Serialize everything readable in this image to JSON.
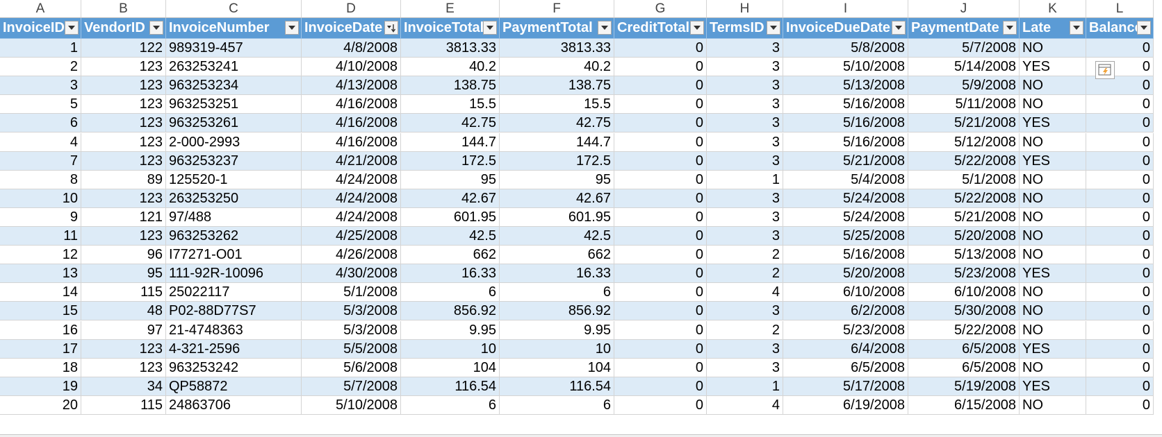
{
  "column_letters": [
    "A",
    "B",
    "C",
    "D",
    "E",
    "F",
    "G",
    "H",
    "I",
    "J",
    "K",
    "L"
  ],
  "headers": [
    "InvoiceID",
    "VendorID",
    "InvoiceNumber",
    "InvoiceDate",
    "InvoiceTotal",
    "PaymentTotal",
    "CreditTotal",
    "TermsID",
    "InvoiceDueDate",
    "PaymentDate",
    "Late",
    "Balance"
  ],
  "sorted_column": "InvoiceDate",
  "colors": {
    "header_bg": "#5b9bd5",
    "band_bg": "#ddebf7",
    "header_text": "#ffffff"
  },
  "rows": [
    [
      "1",
      "122",
      "989319-457",
      "4/8/2008",
      "3813.33",
      "3813.33",
      "0",
      "3",
      "5/8/2008",
      "5/7/2008",
      "NO",
      "0"
    ],
    [
      "2",
      "123",
      "263253241",
      "4/10/2008",
      "40.2",
      "40.2",
      "0",
      "3",
      "5/10/2008",
      "5/14/2008",
      "YES",
      "0"
    ],
    [
      "3",
      "123",
      "963253234",
      "4/13/2008",
      "138.75",
      "138.75",
      "0",
      "3",
      "5/13/2008",
      "5/9/2008",
      "NO",
      "0"
    ],
    [
      "5",
      "123",
      "963253251",
      "4/16/2008",
      "15.5",
      "15.5",
      "0",
      "3",
      "5/16/2008",
      "5/11/2008",
      "NO",
      "0"
    ],
    [
      "6",
      "123",
      "963253261",
      "4/16/2008",
      "42.75",
      "42.75",
      "0",
      "3",
      "5/16/2008",
      "5/21/2008",
      "YES",
      "0"
    ],
    [
      "4",
      "123",
      "2-000-2993",
      "4/16/2008",
      "144.7",
      "144.7",
      "0",
      "3",
      "5/16/2008",
      "5/12/2008",
      "NO",
      "0"
    ],
    [
      "7",
      "123",
      "963253237",
      "4/21/2008",
      "172.5",
      "172.5",
      "0",
      "3",
      "5/21/2008",
      "5/22/2008",
      "YES",
      "0"
    ],
    [
      "8",
      "89",
      "125520-1",
      "4/24/2008",
      "95",
      "95",
      "0",
      "1",
      "5/4/2008",
      "5/1/2008",
      "NO",
      "0"
    ],
    [
      "10",
      "123",
      "263253250",
      "4/24/2008",
      "42.67",
      "42.67",
      "0",
      "3",
      "5/24/2008",
      "5/22/2008",
      "NO",
      "0"
    ],
    [
      "9",
      "121",
      "97/488",
      "4/24/2008",
      "601.95",
      "601.95",
      "0",
      "3",
      "5/24/2008",
      "5/21/2008",
      "NO",
      "0"
    ],
    [
      "11",
      "123",
      "963253262",
      "4/25/2008",
      "42.5",
      "42.5",
      "0",
      "3",
      "5/25/2008",
      "5/20/2008",
      "NO",
      "0"
    ],
    [
      "12",
      "96",
      "I77271-O01",
      "4/26/2008",
      "662",
      "662",
      "0",
      "2",
      "5/16/2008",
      "5/13/2008",
      "NO",
      "0"
    ],
    [
      "13",
      "95",
      "111-92R-10096",
      "4/30/2008",
      "16.33",
      "16.33",
      "0",
      "2",
      "5/20/2008",
      "5/23/2008",
      "YES",
      "0"
    ],
    [
      "14",
      "115",
      "25022117",
      "5/1/2008",
      "6",
      "6",
      "0",
      "4",
      "6/10/2008",
      "6/10/2008",
      "NO",
      "0"
    ],
    [
      "15",
      "48",
      "P02-88D77S7",
      "5/3/2008",
      "856.92",
      "856.92",
      "0",
      "3",
      "6/2/2008",
      "5/30/2008",
      "NO",
      "0"
    ],
    [
      "16",
      "97",
      "21-4748363",
      "5/3/2008",
      "9.95",
      "9.95",
      "0",
      "2",
      "5/23/2008",
      "5/22/2008",
      "NO",
      "0"
    ],
    [
      "17",
      "123",
      "4-321-2596",
      "5/5/2008",
      "10",
      "10",
      "0",
      "3",
      "6/4/2008",
      "6/5/2008",
      "YES",
      "0"
    ],
    [
      "18",
      "123",
      "963253242",
      "5/6/2008",
      "104",
      "104",
      "0",
      "3",
      "6/5/2008",
      "6/5/2008",
      "NO",
      "0"
    ],
    [
      "19",
      "34",
      "QP58872",
      "5/7/2008",
      "116.54",
      "116.54",
      "0",
      "1",
      "5/17/2008",
      "5/19/2008",
      "YES",
      "0"
    ],
    [
      "20",
      "115",
      "24863706",
      "5/10/2008",
      "6",
      "6",
      "0",
      "4",
      "6/19/2008",
      "6/15/2008",
      "NO",
      "0"
    ]
  ],
  "quick_analysis_icon": "quick-analysis-icon"
}
